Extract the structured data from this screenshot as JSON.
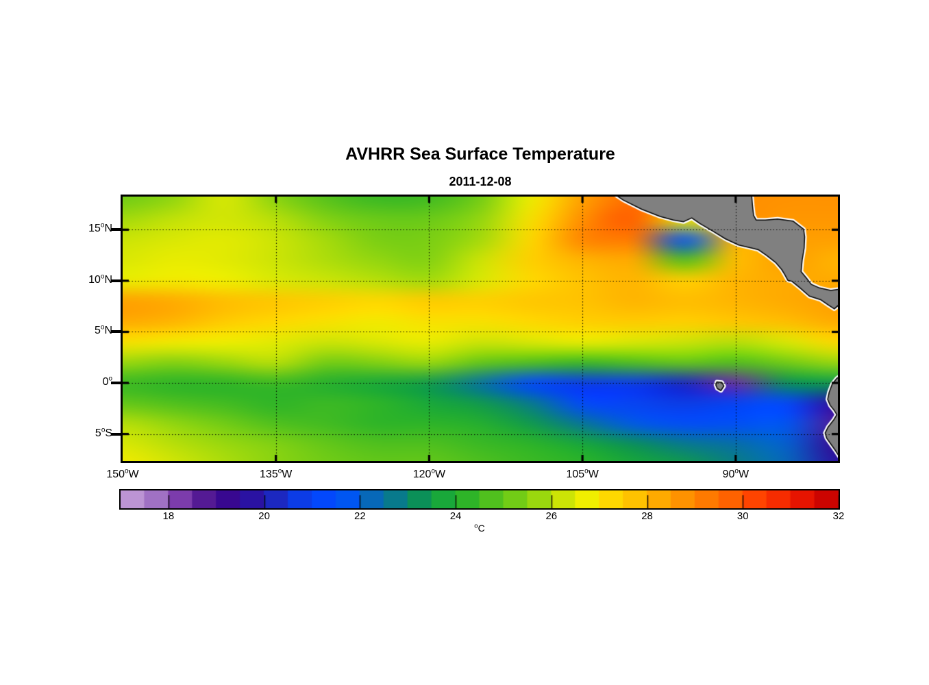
{
  "chart_data": {
    "type": "heatmap",
    "title": "AVHRR Sea Surface Temperature",
    "subtitle": "2011-12-08",
    "geo": {
      "lon_min": -150,
      "lon_max": -80,
      "lat_min": -7.64,
      "lat_max": 18.24
    },
    "x_axis": {
      "ticks": [
        {
          "lon": -150,
          "deg": "150",
          "dir": "W"
        },
        {
          "lon": -135,
          "deg": "135",
          "dir": "W"
        },
        {
          "lon": -120,
          "deg": "120",
          "dir": "W"
        },
        {
          "lon": -105,
          "deg": "105",
          "dir": "W"
        },
        {
          "lon": -90,
          "deg": "90",
          "dir": "W"
        }
      ]
    },
    "y_axis": {
      "ticks": [
        {
          "lat": 15,
          "deg": "15",
          "dir": "N"
        },
        {
          "lat": 10,
          "deg": "10",
          "dir": "N"
        },
        {
          "lat": 5,
          "deg": "5",
          "dir": "N"
        },
        {
          "lat": 0,
          "deg": "0",
          "dir": ""
        },
        {
          "lat": -5,
          "deg": "5",
          "dir": "S"
        }
      ]
    },
    "gridlines": {
      "lons": [
        -135,
        -120,
        -105,
        -90
      ],
      "lats": [
        15,
        10,
        5,
        0,
        -5
      ]
    },
    "sst_grid": {
      "lons": [
        -150,
        -145,
        -140,
        -135,
        -130,
        -125,
        -120,
        -115,
        -110,
        -105,
        -100,
        -95,
        -90,
        -85,
        -80
      ],
      "lats": [
        18,
        16,
        14,
        12,
        10,
        8,
        6,
        4,
        2,
        0,
        -2,
        -4,
        -6,
        -8
      ],
      "values_c": [
        [
          25.0,
          25.4,
          26.2,
          25.3,
          24.6,
          24.2,
          24.3,
          25.0,
          26.5,
          28.2,
          29.3,
          29.0,
          28.6,
          28.5,
          28.5
        ],
        [
          25.6,
          25.9,
          26.1,
          25.8,
          25.2,
          24.9,
          24.9,
          25.4,
          26.8,
          28.6,
          29.6,
          26.5,
          28.4,
          28.4,
          28.4
        ],
        [
          26.0,
          26.2,
          26.3,
          26.0,
          25.6,
          25.1,
          25.1,
          25.6,
          27.0,
          28.8,
          29.0,
          21.5,
          27.8,
          28.2,
          28.2
        ],
        [
          26.2,
          26.4,
          26.3,
          26.0,
          25.7,
          25.4,
          25.2,
          26.0,
          27.2,
          27.8,
          28.0,
          24.5,
          27.6,
          28.2,
          27.8
        ],
        [
          26.4,
          26.6,
          26.5,
          26.2,
          26.0,
          25.8,
          25.6,
          26.2,
          27.0,
          27.5,
          27.8,
          27.2,
          27.8,
          28.0,
          28.0
        ],
        [
          28.2,
          28.0,
          27.6,
          27.4,
          27.2,
          27.0,
          27.3,
          27.2,
          27.4,
          27.5,
          27.8,
          27.6,
          27.8,
          28.0,
          28.2
        ],
        [
          28.0,
          27.8,
          27.3,
          27.0,
          26.8,
          26.6,
          26.8,
          26.8,
          27.0,
          27.2,
          27.3,
          27.2,
          27.4,
          27.6,
          28.0
        ],
        [
          26.8,
          26.6,
          26.5,
          26.3,
          26.0,
          26.2,
          26.4,
          26.0,
          26.2,
          26.4,
          26.2,
          26.0,
          25.8,
          26.2,
          27.0
        ],
        [
          25.5,
          25.2,
          25.5,
          25.8,
          25.0,
          25.2,
          25.5,
          24.8,
          24.5,
          24.2,
          24.5,
          24.8,
          24.5,
          25.0,
          25.5
        ],
        [
          24.2,
          24.0,
          24.0,
          24.2,
          23.8,
          23.5,
          23.2,
          22.3,
          21.0,
          20.5,
          20.5,
          20.0,
          18.2,
          23.0,
          23.2
        ],
        [
          24.8,
          24.5,
          24.3,
          24.0,
          24.2,
          24.0,
          23.5,
          23.2,
          22.5,
          21.0,
          20.8,
          20.5,
          20.8,
          21.0,
          19.2
        ],
        [
          25.8,
          25.4,
          25.0,
          24.5,
          24.3,
          24.0,
          24.0,
          23.8,
          23.2,
          22.4,
          21.6,
          21.2,
          21.3,
          21.5,
          18.5
        ],
        [
          26.2,
          25.8,
          25.5,
          25.2,
          24.8,
          24.5,
          24.5,
          24.2,
          24.0,
          23.5,
          23.0,
          22.5,
          22.2,
          21.8,
          19.0
        ],
        [
          26.6,
          26.1,
          25.7,
          25.3,
          25.0,
          24.8,
          24.8,
          24.5,
          24.2,
          24.0,
          23.5,
          23.2,
          22.6,
          22.0,
          19.5
        ]
      ]
    },
    "colorbar": {
      "min_c": 17,
      "max_c": 32,
      "block_c": 0.5,
      "tick_values": [
        18,
        20,
        22,
        24,
        26,
        28,
        30,
        32
      ],
      "unit_sup": "o",
      "unit_base": "C",
      "unit": "°C",
      "colors": [
        "#bc94d4",
        "#a071c4",
        "#7c3cac",
        "#541a94",
        "#380890",
        "#2a12a2",
        "#1c28c0",
        "#0c3ce6",
        "#0348fc",
        "#0056f2",
        "#0768b8",
        "#087a8c",
        "#0b9058",
        "#19a83a",
        "#2eb428",
        "#50c01e",
        "#72cc16",
        "#9ad80e",
        "#cce406",
        "#f0ee00",
        "#ffd800",
        "#ffc200",
        "#ffaa00",
        "#ff9200",
        "#ff7a00",
        "#ff6200",
        "#ff4400",
        "#f62c00",
        "#e61400",
        "#cc0400",
        "#a80000"
      ]
    },
    "land": {
      "fill": "#808080",
      "outline": "#000000",
      "halo": "#ffffff",
      "polygons": {
        "central_america": [
          [
            -101.9,
            18.5
          ],
          [
            -101.0,
            17.9
          ],
          [
            -99.2,
            17.0
          ],
          [
            -97.4,
            16.3
          ],
          [
            -96.1,
            15.95
          ],
          [
            -95.1,
            15.78
          ],
          [
            -94.3,
            16.15
          ],
          [
            -93.5,
            15.6
          ],
          [
            -92.3,
            14.9
          ],
          [
            -91.0,
            14.1
          ],
          [
            -89.7,
            13.5
          ],
          [
            -88.4,
            13.2
          ],
          [
            -87.8,
            13.05
          ],
          [
            -87.0,
            12.5
          ],
          [
            -86.1,
            11.8
          ],
          [
            -85.5,
            11.1
          ],
          [
            -85.2,
            10.6
          ],
          [
            -84.9,
            10.05
          ],
          [
            -84.5,
            9.95
          ],
          [
            -83.7,
            9.3
          ],
          [
            -82.8,
            8.5
          ],
          [
            -81.7,
            8.15
          ],
          [
            -80.9,
            7.6
          ],
          [
            -80.35,
            7.25
          ],
          [
            -80.0,
            7.55
          ],
          [
            -79.7,
            8.0
          ],
          [
            -79.7,
            9.2
          ],
          [
            -80.7,
            9.05
          ],
          [
            -81.8,
            9.3
          ],
          [
            -82.6,
            9.65
          ],
          [
            -83.1,
            10.3
          ],
          [
            -83.6,
            10.9
          ],
          [
            -83.5,
            12.0
          ],
          [
            -83.3,
            13.2
          ],
          [
            -83.25,
            14.3
          ],
          [
            -83.35,
            15.05
          ],
          [
            -84.4,
            15.85
          ],
          [
            -85.9,
            16.05
          ],
          [
            -87.1,
            15.95
          ],
          [
            -88.0,
            15.95
          ],
          [
            -88.25,
            16.4
          ],
          [
            -88.35,
            17.3
          ],
          [
            -88.45,
            18.5
          ]
        ],
        "south_america": [
          [
            -79.5,
            0.9
          ],
          [
            -80.1,
            0.45
          ],
          [
            -80.55,
            -0.1
          ],
          [
            -80.85,
            -0.9
          ],
          [
            -81.0,
            -1.6
          ],
          [
            -80.75,
            -2.2
          ],
          [
            -80.35,
            -2.7
          ],
          [
            -80.1,
            -3.1
          ],
          [
            -80.4,
            -3.6
          ],
          [
            -80.95,
            -4.3
          ],
          [
            -81.25,
            -4.9
          ],
          [
            -81.1,
            -5.4
          ],
          [
            -80.75,
            -5.9
          ],
          [
            -80.25,
            -6.6
          ],
          [
            -79.8,
            -7.3
          ],
          [
            -79.5,
            -7.9
          ]
        ],
        "galapagos_islands": [
          [
            -91.85,
            0.1
          ],
          [
            -91.35,
            0.05
          ],
          [
            -91.15,
            -0.3
          ],
          [
            -91.45,
            -0.75
          ],
          [
            -91.8,
            -0.55
          ],
          [
            -91.95,
            -0.2
          ]
        ]
      }
    },
    "grid_color": "#000000",
    "frame_color": "#000000"
  }
}
